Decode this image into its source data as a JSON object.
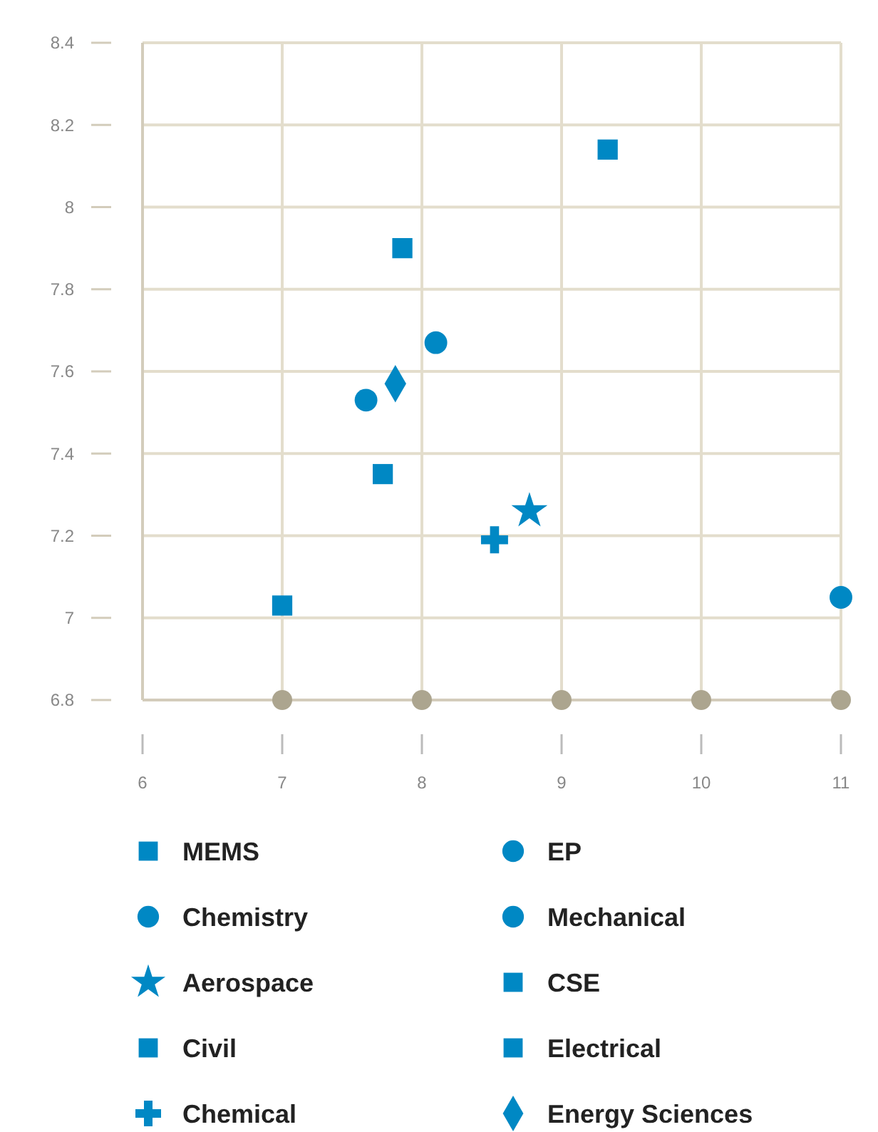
{
  "chart_data": {
    "type": "scatter",
    "xlim": [
      6,
      11
    ],
    "ylim": [
      6.8,
      8.4
    ],
    "xticks": [
      6,
      7,
      8,
      9,
      10,
      11
    ],
    "yticks": [
      6.8,
      7,
      7.2,
      7.4,
      7.6,
      7.8,
      8,
      8.2,
      8.4
    ],
    "grid": true,
    "legend": "bottom",
    "series": [
      {
        "name": "MEMS",
        "color": "#0088c4",
        "marker": "square",
        "x": [
          7.0
        ],
        "values": [
          7.03
        ]
      },
      {
        "name": "EP",
        "color": "#0088c4",
        "marker": "circle",
        "x": [
          7.6
        ],
        "values": [
          7.53
        ]
      },
      {
        "name": "Chemistry",
        "color": "#0088c4",
        "marker": "circle",
        "x": [
          11.0
        ],
        "values": [
          7.05
        ]
      },
      {
        "name": "Mechanical",
        "color": "#0088c4",
        "marker": "circle",
        "x": [
          8.1
        ],
        "values": [
          7.67
        ]
      },
      {
        "name": "Aerospace",
        "color": "#0088c4",
        "marker": "star",
        "x": [
          8.77
        ],
        "values": [
          7.26
        ]
      },
      {
        "name": "CSE",
        "color": "#0088c4",
        "marker": "square",
        "x": [
          7.86
        ],
        "values": [
          7.9
        ]
      },
      {
        "name": "Civil",
        "color": "#0088c4",
        "marker": "square",
        "x": [
          7.72
        ],
        "values": [
          7.35
        ]
      },
      {
        "name": "Electrical",
        "color": "#0088c4",
        "marker": "square",
        "x": [
          9.33
        ],
        "values": [
          8.14
        ]
      },
      {
        "name": "Chemical",
        "color": "#0088c4",
        "marker": "cross",
        "x": [
          8.52
        ],
        "values": [
          7.19
        ]
      },
      {
        "name": "Energy Sciences",
        "color": "#0088c4",
        "marker": "diamond",
        "x": [
          7.81
        ],
        "values": [
          7.57
        ]
      }
    ]
  }
}
